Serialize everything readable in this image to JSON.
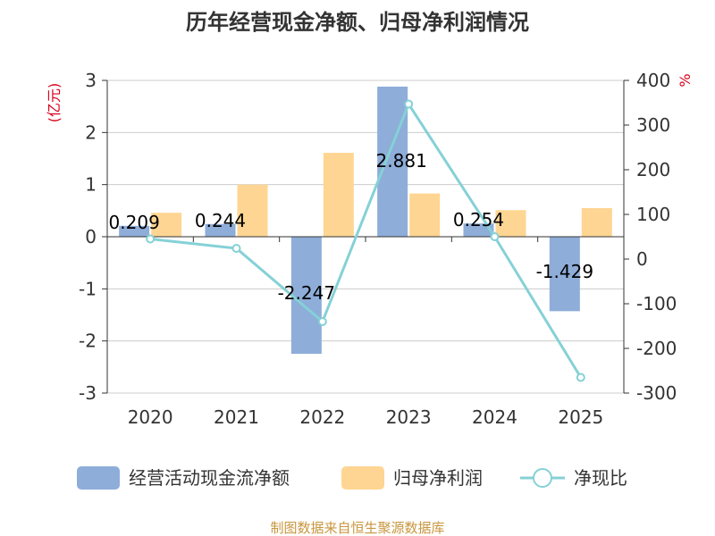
{
  "title": "历年经营现金净额、归母净利润情况",
  "source_note": "制图数据来自恒生聚源数据库",
  "colors": {
    "cash": "#8eadd9",
    "profit": "#fed592",
    "ratio": "#85d1d6",
    "unit": "#d9001b"
  },
  "chart_data": {
    "type": "bar",
    "categories": [
      "2020",
      "2021",
      "2022",
      "2023",
      "2024",
      "2025"
    ],
    "series": [
      {
        "name": "经营活动现金流净额",
        "type": "bar",
        "axis": "left",
        "values": [
          0.209,
          0.244,
          -2.247,
          2.881,
          0.254,
          -1.429
        ]
      },
      {
        "name": "归母净利润",
        "type": "bar",
        "axis": "left",
        "values": [
          0.46,
          1.0,
          1.61,
          0.83,
          0.51,
          0.55
        ]
      },
      {
        "name": "净现比",
        "type": "line",
        "axis": "right",
        "values": [
          45,
          24,
          -140,
          347,
          50,
          -265
        ]
      }
    ],
    "y_left": {
      "unit": "(亿元)",
      "ylim": [
        -3,
        3
      ],
      "ticks": [
        3,
        2,
        1,
        0,
        -1,
        -2,
        -3
      ]
    },
    "y_right": {
      "unit": "%",
      "ylim": [
        -300,
        400
      ],
      "ticks": [
        400,
        300,
        200,
        100,
        0,
        -100,
        -200,
        -300
      ]
    },
    "data_labels": [
      "0.209",
      "0.244",
      "-2.247",
      "2.881",
      "0.254",
      "-1.429"
    ],
    "grid": true,
    "legend": "bottom"
  }
}
